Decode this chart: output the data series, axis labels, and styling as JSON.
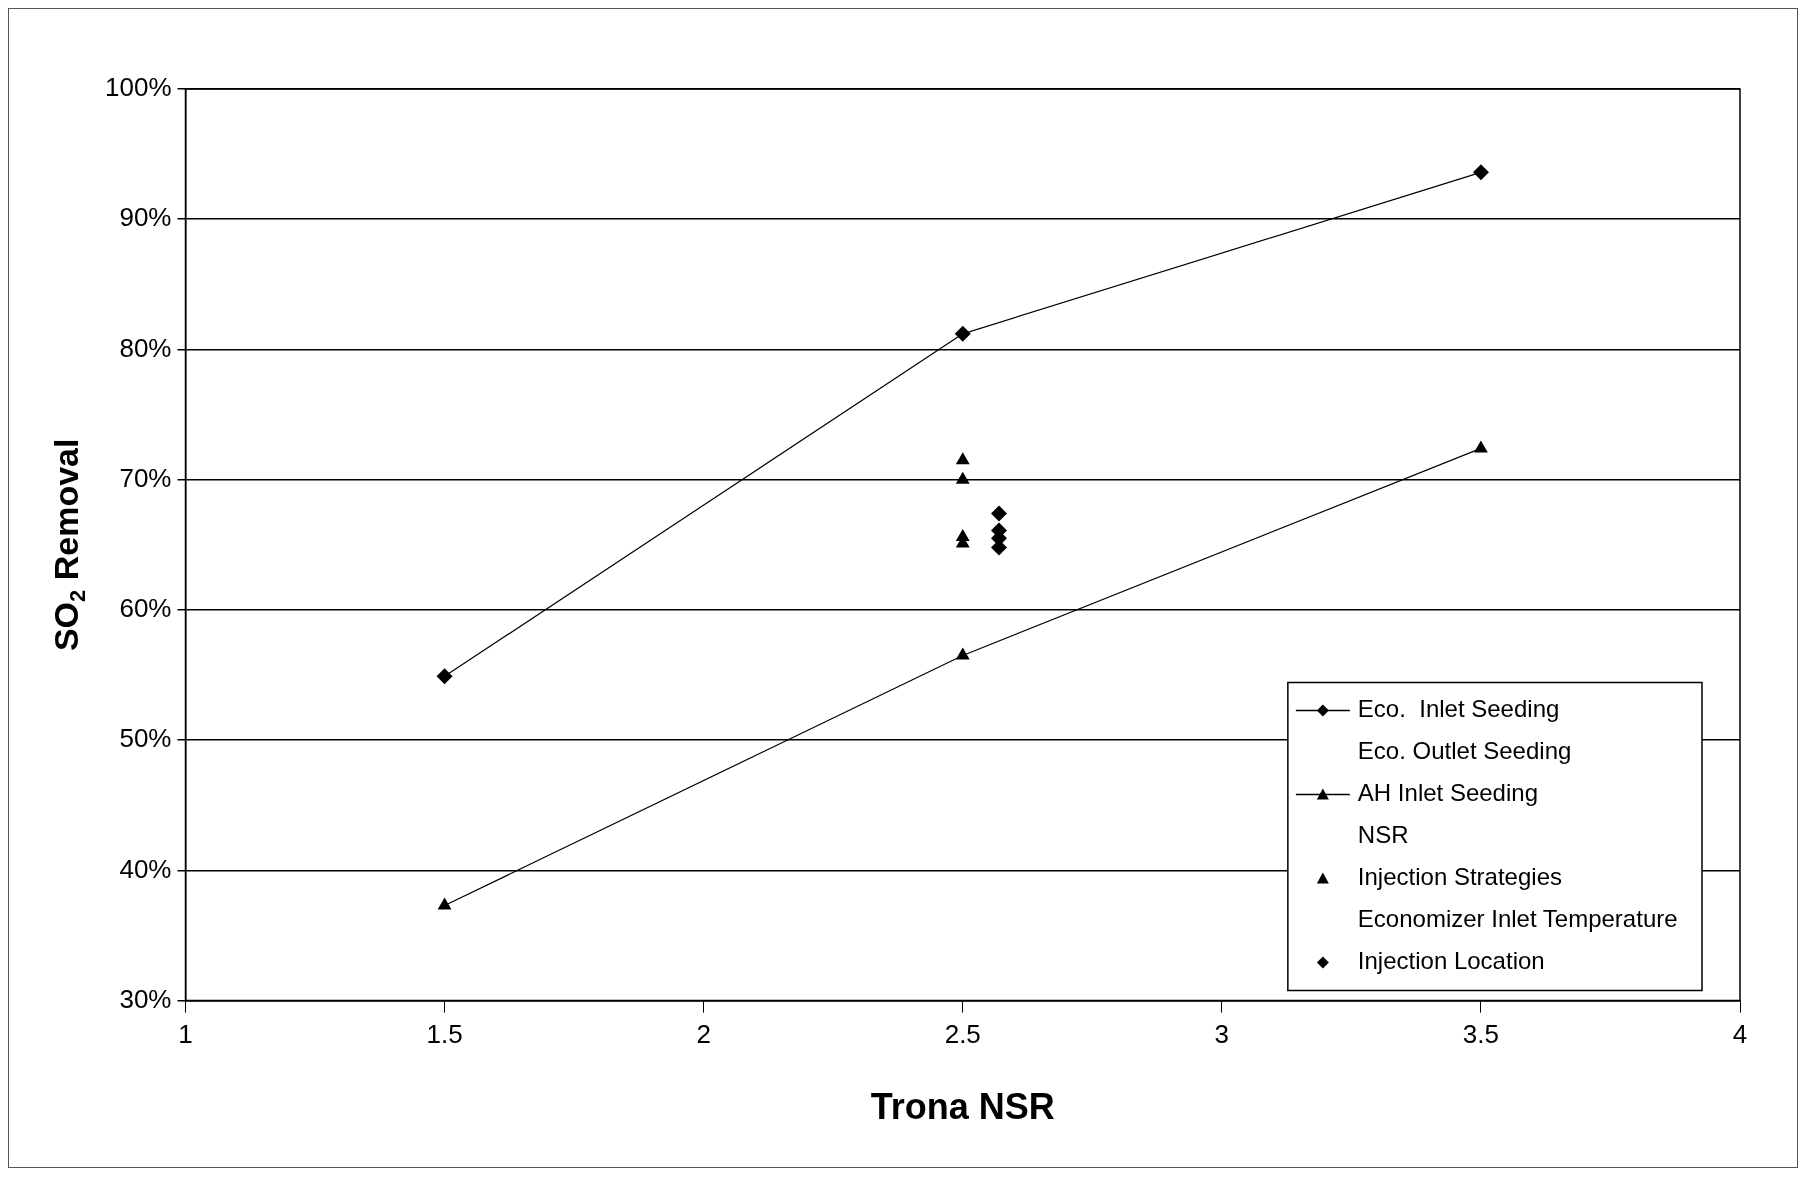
{
  "chart_data": {
    "type": "line",
    "xlabel": "Trona NSR",
    "ylabel": "SO$_{2}$ Removal",
    "xlim": [
      1,
      4
    ],
    "xticks": [
      1,
      1.5,
      2,
      2.5,
      3,
      3.5,
      4
    ],
    "ylim": [
      30,
      100
    ],
    "yticks": [
      {
        "value": 30,
        "label": "30%"
      },
      {
        "value": 40,
        "label": "40%"
      },
      {
        "value": 50,
        "label": "50%"
      },
      {
        "value": 60,
        "label": "60%"
      },
      {
        "value": 70,
        "label": "70%"
      },
      {
        "value": 80,
        "label": "80%"
      },
      {
        "value": 90,
        "label": "90%"
      },
      {
        "value": 100,
        "label": "100%"
      }
    ],
    "grid": "y",
    "legend": "bottom right",
    "line_style": "solid",
    "series": [
      {
        "name": "Eco.  Inlet Seeding",
        "marker": "diamond",
        "color": "#000000",
        "x": [
          1.5,
          2.5,
          3.5
        ],
        "values": [
          54.9,
          81.2,
          93.6
        ]
      },
      {
        "name": "Eco. Outlet Seeding"
      },
      {
        "name": "AH Inlet Seeding",
        "marker": "triangle",
        "color": "#000000",
        "x": [
          1.5,
          2.5,
          3.5
        ],
        "values": [
          37.3,
          56.5,
          72.4
        ]
      },
      {
        "name": "NSR"
      },
      {
        "name": "Injection Strategies",
        "type": "scatter",
        "marker": "triangle",
        "color": "#000000",
        "x": [
          2.5,
          2.5,
          2.5,
          2.5
        ],
        "values": [
          71.5,
          70.0,
          65.6,
          65.1
        ]
      },
      {
        "name": "Economizer Inlet Temperature"
      },
      {
        "name": "Injection Location",
        "type": "scatter",
        "marker": "diamond",
        "color": "#000000",
        "x": [
          2.57,
          2.57,
          2.57,
          2.57
        ],
        "values": [
          67.4,
          66.1,
          65.5,
          64.8
        ]
      }
    ]
  }
}
